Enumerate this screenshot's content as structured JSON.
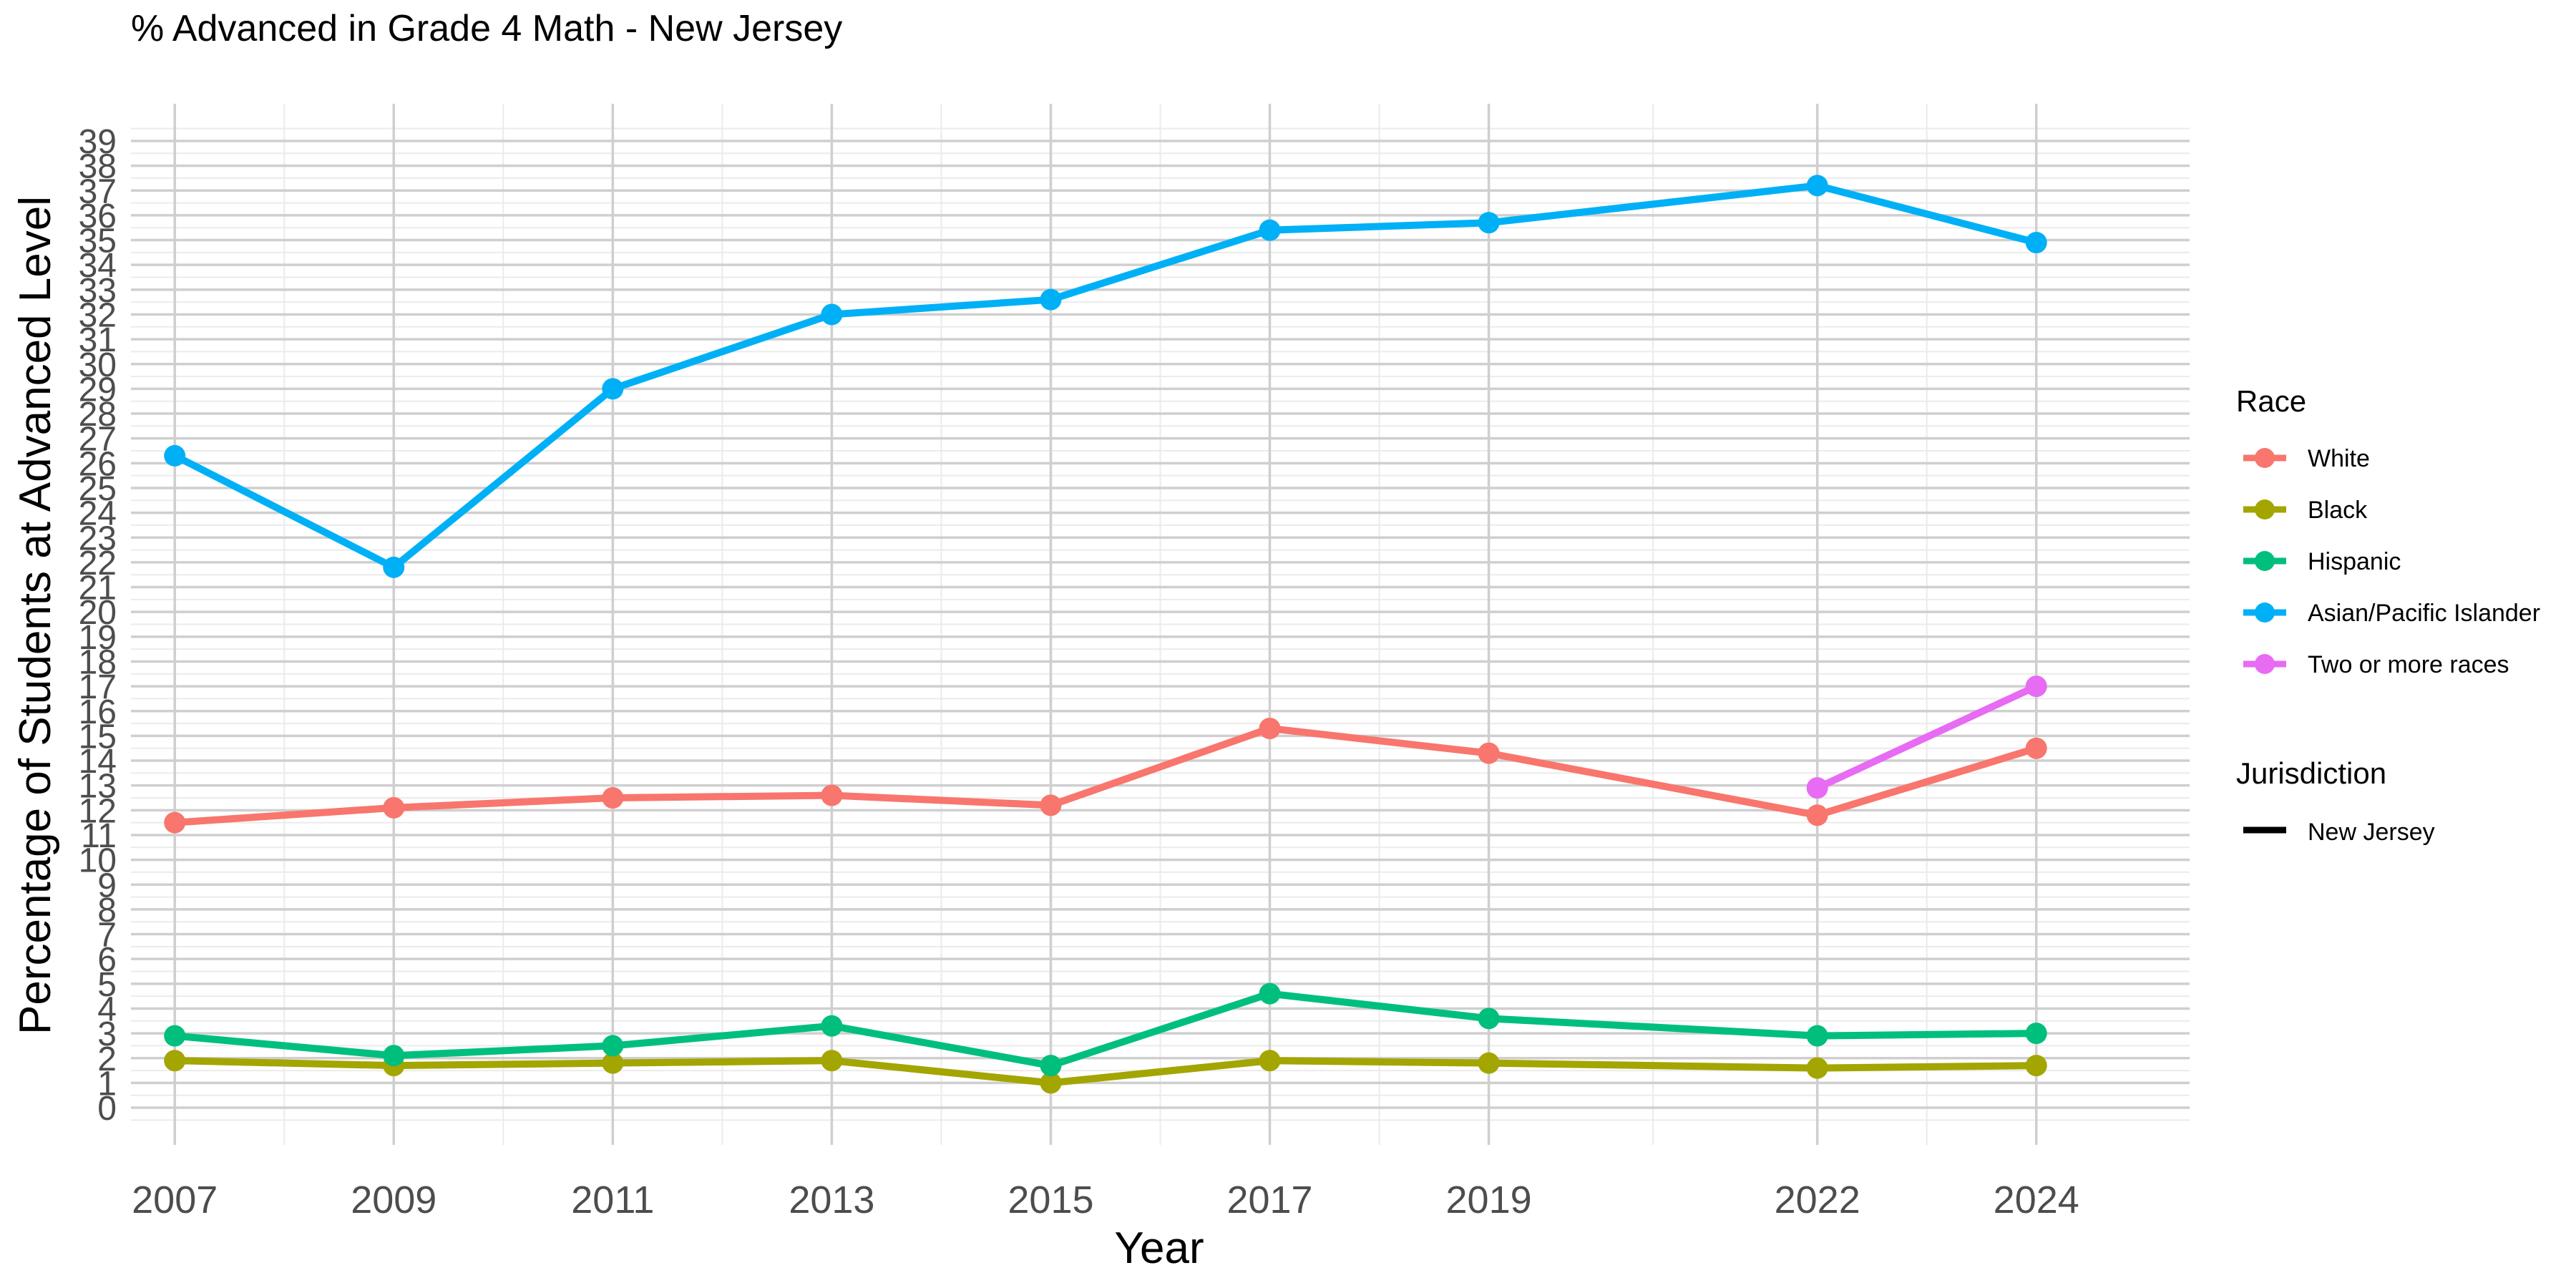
{
  "chart_data": {
    "type": "line",
    "title": "% Advanced in Grade 4 Math - New Jersey",
    "xlabel": "Year",
    "ylabel": "Percentage of Students at Advanced Level",
    "x": [
      2007,
      2009,
      2011,
      2013,
      2015,
      2017,
      2019,
      2022,
      2024
    ],
    "xticks": [
      "2007",
      "2009",
      "2011",
      "2013",
      "2015",
      "2017",
      "2019",
      "2022",
      "2024"
    ],
    "xlim": [
      2006.6,
      2025.4
    ],
    "ylim": [
      -1.5,
      40.5
    ],
    "yticks": [
      "0",
      "1",
      "2",
      "3",
      "4",
      "5",
      "6",
      "7",
      "8",
      "9",
      "10",
      "11",
      "12",
      "13",
      "14",
      "15",
      "16",
      "17",
      "18",
      "19",
      "20",
      "21",
      "22",
      "23",
      "24",
      "25",
      "26",
      "27",
      "28",
      "29",
      "30",
      "31",
      "32",
      "33",
      "34",
      "35",
      "36",
      "37",
      "38",
      "39"
    ],
    "grid": true,
    "legend": {
      "placement": "right",
      "race_title": "Race",
      "jurisdiction_title": "Jurisdiction",
      "jurisdiction_item": "New Jersey"
    },
    "series": [
      {
        "name": "White",
        "color": "#F8766D",
        "x": [
          2007,
          2009,
          2011,
          2013,
          2015,
          2017,
          2019,
          2022,
          2024
        ],
        "values": [
          11.5,
          12.1,
          12.5,
          12.6,
          12.2,
          15.3,
          14.3,
          11.8,
          14.5
        ]
      },
      {
        "name": "Black",
        "color": "#A3A500",
        "x": [
          2007,
          2009,
          2011,
          2013,
          2015,
          2017,
          2019,
          2022,
          2024
        ],
        "values": [
          1.9,
          1.7,
          1.8,
          1.9,
          1.0,
          1.9,
          1.8,
          1.6,
          1.7
        ]
      },
      {
        "name": "Hispanic",
        "color": "#00BF7D",
        "x": [
          2007,
          2009,
          2011,
          2013,
          2015,
          2017,
          2019,
          2022,
          2024
        ],
        "values": [
          2.9,
          2.1,
          2.5,
          3.3,
          1.7,
          4.6,
          3.6,
          2.9,
          3.0
        ]
      },
      {
        "name": "Asian/Pacific Islander",
        "color": "#00B0F6",
        "x": [
          2007,
          2009,
          2011,
          2013,
          2015,
          2017,
          2019,
          2022,
          2024
        ],
        "values": [
          26.3,
          21.8,
          29.0,
          32.0,
          32.6,
          35.4,
          35.7,
          37.2,
          34.9
        ]
      },
      {
        "name": "Two or more races",
        "color": "#E76BF3",
        "x": [
          2022,
          2024
        ],
        "values": [
          12.9,
          17.0
        ]
      }
    ]
  }
}
